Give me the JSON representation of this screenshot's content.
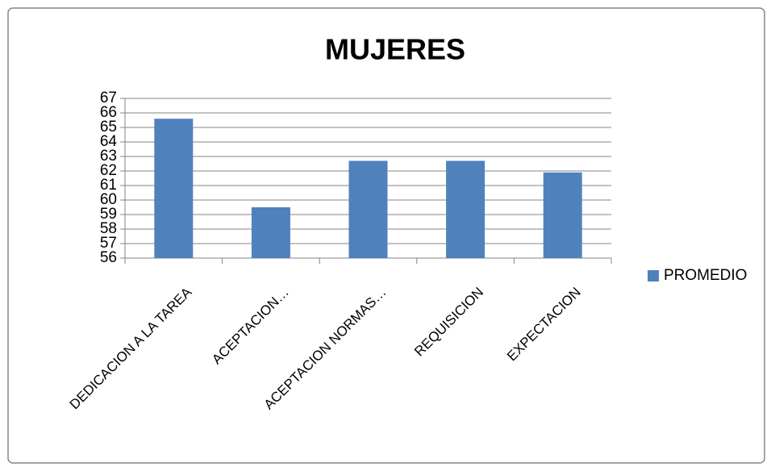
{
  "chart_data": {
    "type": "bar",
    "title": "MUJERES",
    "categories": [
      "DEDICACION A LA TAREA",
      "ACEPTACION…",
      "ACEPTACION NORMAS…",
      "REQUISICION",
      "EXPECTACION"
    ],
    "series": [
      {
        "name": "PROMEDIO",
        "color": "#4f81bd",
        "values": [
          65.6,
          59.5,
          62.7,
          62.7,
          61.9
        ]
      }
    ],
    "ylim": [
      56,
      67
    ],
    "yticks": [
      56,
      57,
      58,
      59,
      60,
      61,
      62,
      63,
      64,
      65,
      66,
      67
    ],
    "grid": true,
    "legend": "right"
  }
}
